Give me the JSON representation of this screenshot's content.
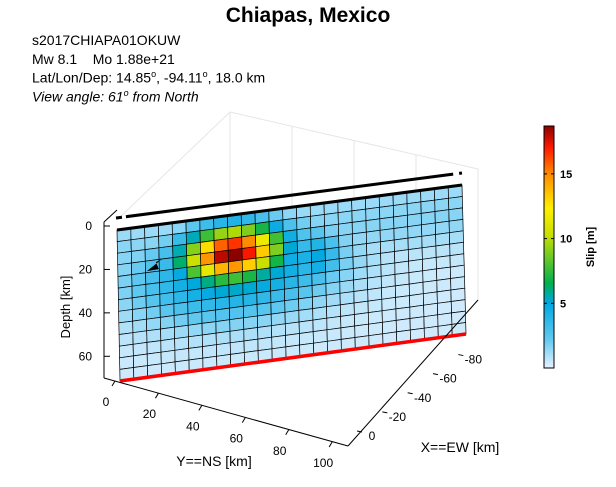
{
  "header": {
    "title": "Chiapas, Mexico",
    "event_id": "s2017CHIAPA01OKUW",
    "mw_label": "Mw 8.1",
    "mo_label": "Mo 1.88e+21",
    "location_prefix": "Lat/Lon/Dep: 14.85",
    "location_mid": ", -94.11",
    "location_suffix": ", 18.0 km",
    "degree_mark": "o",
    "view_prefix": "View angle:  61",
    "view_suffix": " from North"
  },
  "colors": {
    "background": "#ffffff",
    "trench_line": "#ff0000",
    "top_edge": "#000000",
    "grid_line": "#000000",
    "box_line": "#000000",
    "axis_grid": "#e6e6e6"
  },
  "chart_data": {
    "type": "heatmap",
    "title": "Chiapas, Mexico",
    "y_axis": {
      "label": "Y==NS [km]",
      "ticks": [
        0,
        20,
        40,
        60,
        80,
        100
      ],
      "range": [
        0,
        105
      ]
    },
    "x_axis": {
      "label": "X==EW [km]",
      "ticks": [
        0,
        -20,
        -40,
        -60,
        -80
      ],
      "range": [
        0,
        -90
      ]
    },
    "z_axis": {
      "label": "Depth [km]",
      "ticks": [
        0,
        20,
        40,
        60
      ],
      "range": [
        0,
        70
      ]
    },
    "colorbar": {
      "label": "Slip [m]",
      "ticks": [
        5,
        10,
        15
      ],
      "range": [
        0,
        18.7
      ],
      "colormap": "jet"
    },
    "fault": {
      "strike_km": [
        0,
        105
      ],
      "depth_km": [
        0,
        70
      ],
      "n_along_strike": 25,
      "n_down_dip": 13,
      "peak_slip_m": 18.7,
      "hypocenter": {
        "y_km": 11,
        "depth_km": 18
      },
      "peak_location": {
        "y_km": 35,
        "depth_km": 18
      }
    },
    "view": {
      "angle_from_north_deg": 61
    }
  }
}
